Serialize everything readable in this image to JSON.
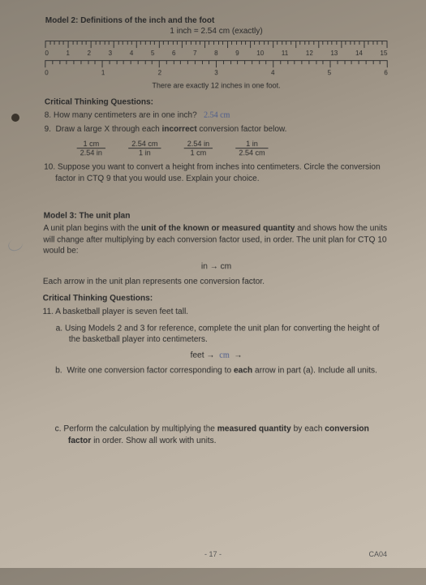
{
  "model2": {
    "heading": "Model 2: Definitions of the inch and the foot",
    "definition": "1 inch = 2.54 cm (exactly)",
    "ruler_top": {
      "labels": [
        "0",
        "1",
        "2",
        "3",
        "4",
        "5",
        "6",
        "7",
        "8",
        "9",
        "10",
        "11",
        "12",
        "13",
        "14",
        "15"
      ],
      "unit": "cm"
    },
    "ruler_bottom": {
      "labels": [
        "0",
        "1",
        "2",
        "3",
        "4",
        "5",
        "6"
      ],
      "unit": "in"
    },
    "caption": "There are exactly 12 inches in one foot."
  },
  "ctq_a": {
    "title": "Critical Thinking Questions:",
    "q8": "8.  How many centimeters are in one inch?",
    "q8_answer": "2.54 cm",
    "q9": "9.  Draw a large X through each incorrect conversion factor below.",
    "fractions": [
      {
        "top": "1 cm",
        "bot": "2.54 in"
      },
      {
        "top": "2.54 cm",
        "bot": "1 in"
      },
      {
        "top": "2.54 in",
        "bot": "1 cm"
      },
      {
        "top": "1 in",
        "bot": "2.54 cm"
      }
    ],
    "q10": "10. Suppose you want to convert a height from inches into centimeters. Circle the conversion factor in CTQ 9 that you would use. Explain your choice."
  },
  "model3": {
    "heading": "Model 3: The unit plan",
    "body_a": "A unit plan begins with the ",
    "body_b": "unit of the known or measured quantity",
    "body_c": " and shows how the units will change after multiplying by each conversion factor used, in order. The unit plan for CTQ 10 would be:",
    "plan": "in → cm",
    "note": "Each arrow in the unit plan represents one conversion factor."
  },
  "ctq_b": {
    "title": "Critical Thinking Questions:",
    "q11": "11. A basketball player is seven feet tall.",
    "q11a": "a.  Using Models 2 and 3 for reference, complete the unit plan for converting the height of the basketball player into centimeters.",
    "q11a_plan_left": "feet  →",
    "q11a_plan_hand": "cm",
    "q11a_plan_right": "→",
    "q11b": "b.  Write one conversion factor corresponding to each arrow in part (a). Include all units.",
    "q11c_a": "c.  Perform the calculation by multiplying the ",
    "q11c_b": "measured quantity",
    "q11c_c": " by each ",
    "q11c_d": "conversion factor",
    "q11c_e": " in order. Show all work with units."
  },
  "footer": {
    "page": "- 17 -",
    "code": "CA04"
  },
  "colors": {
    "paper_shadow": "#8a8276",
    "text": "#2a2a2a",
    "hand": "#4a5a8a"
  }
}
